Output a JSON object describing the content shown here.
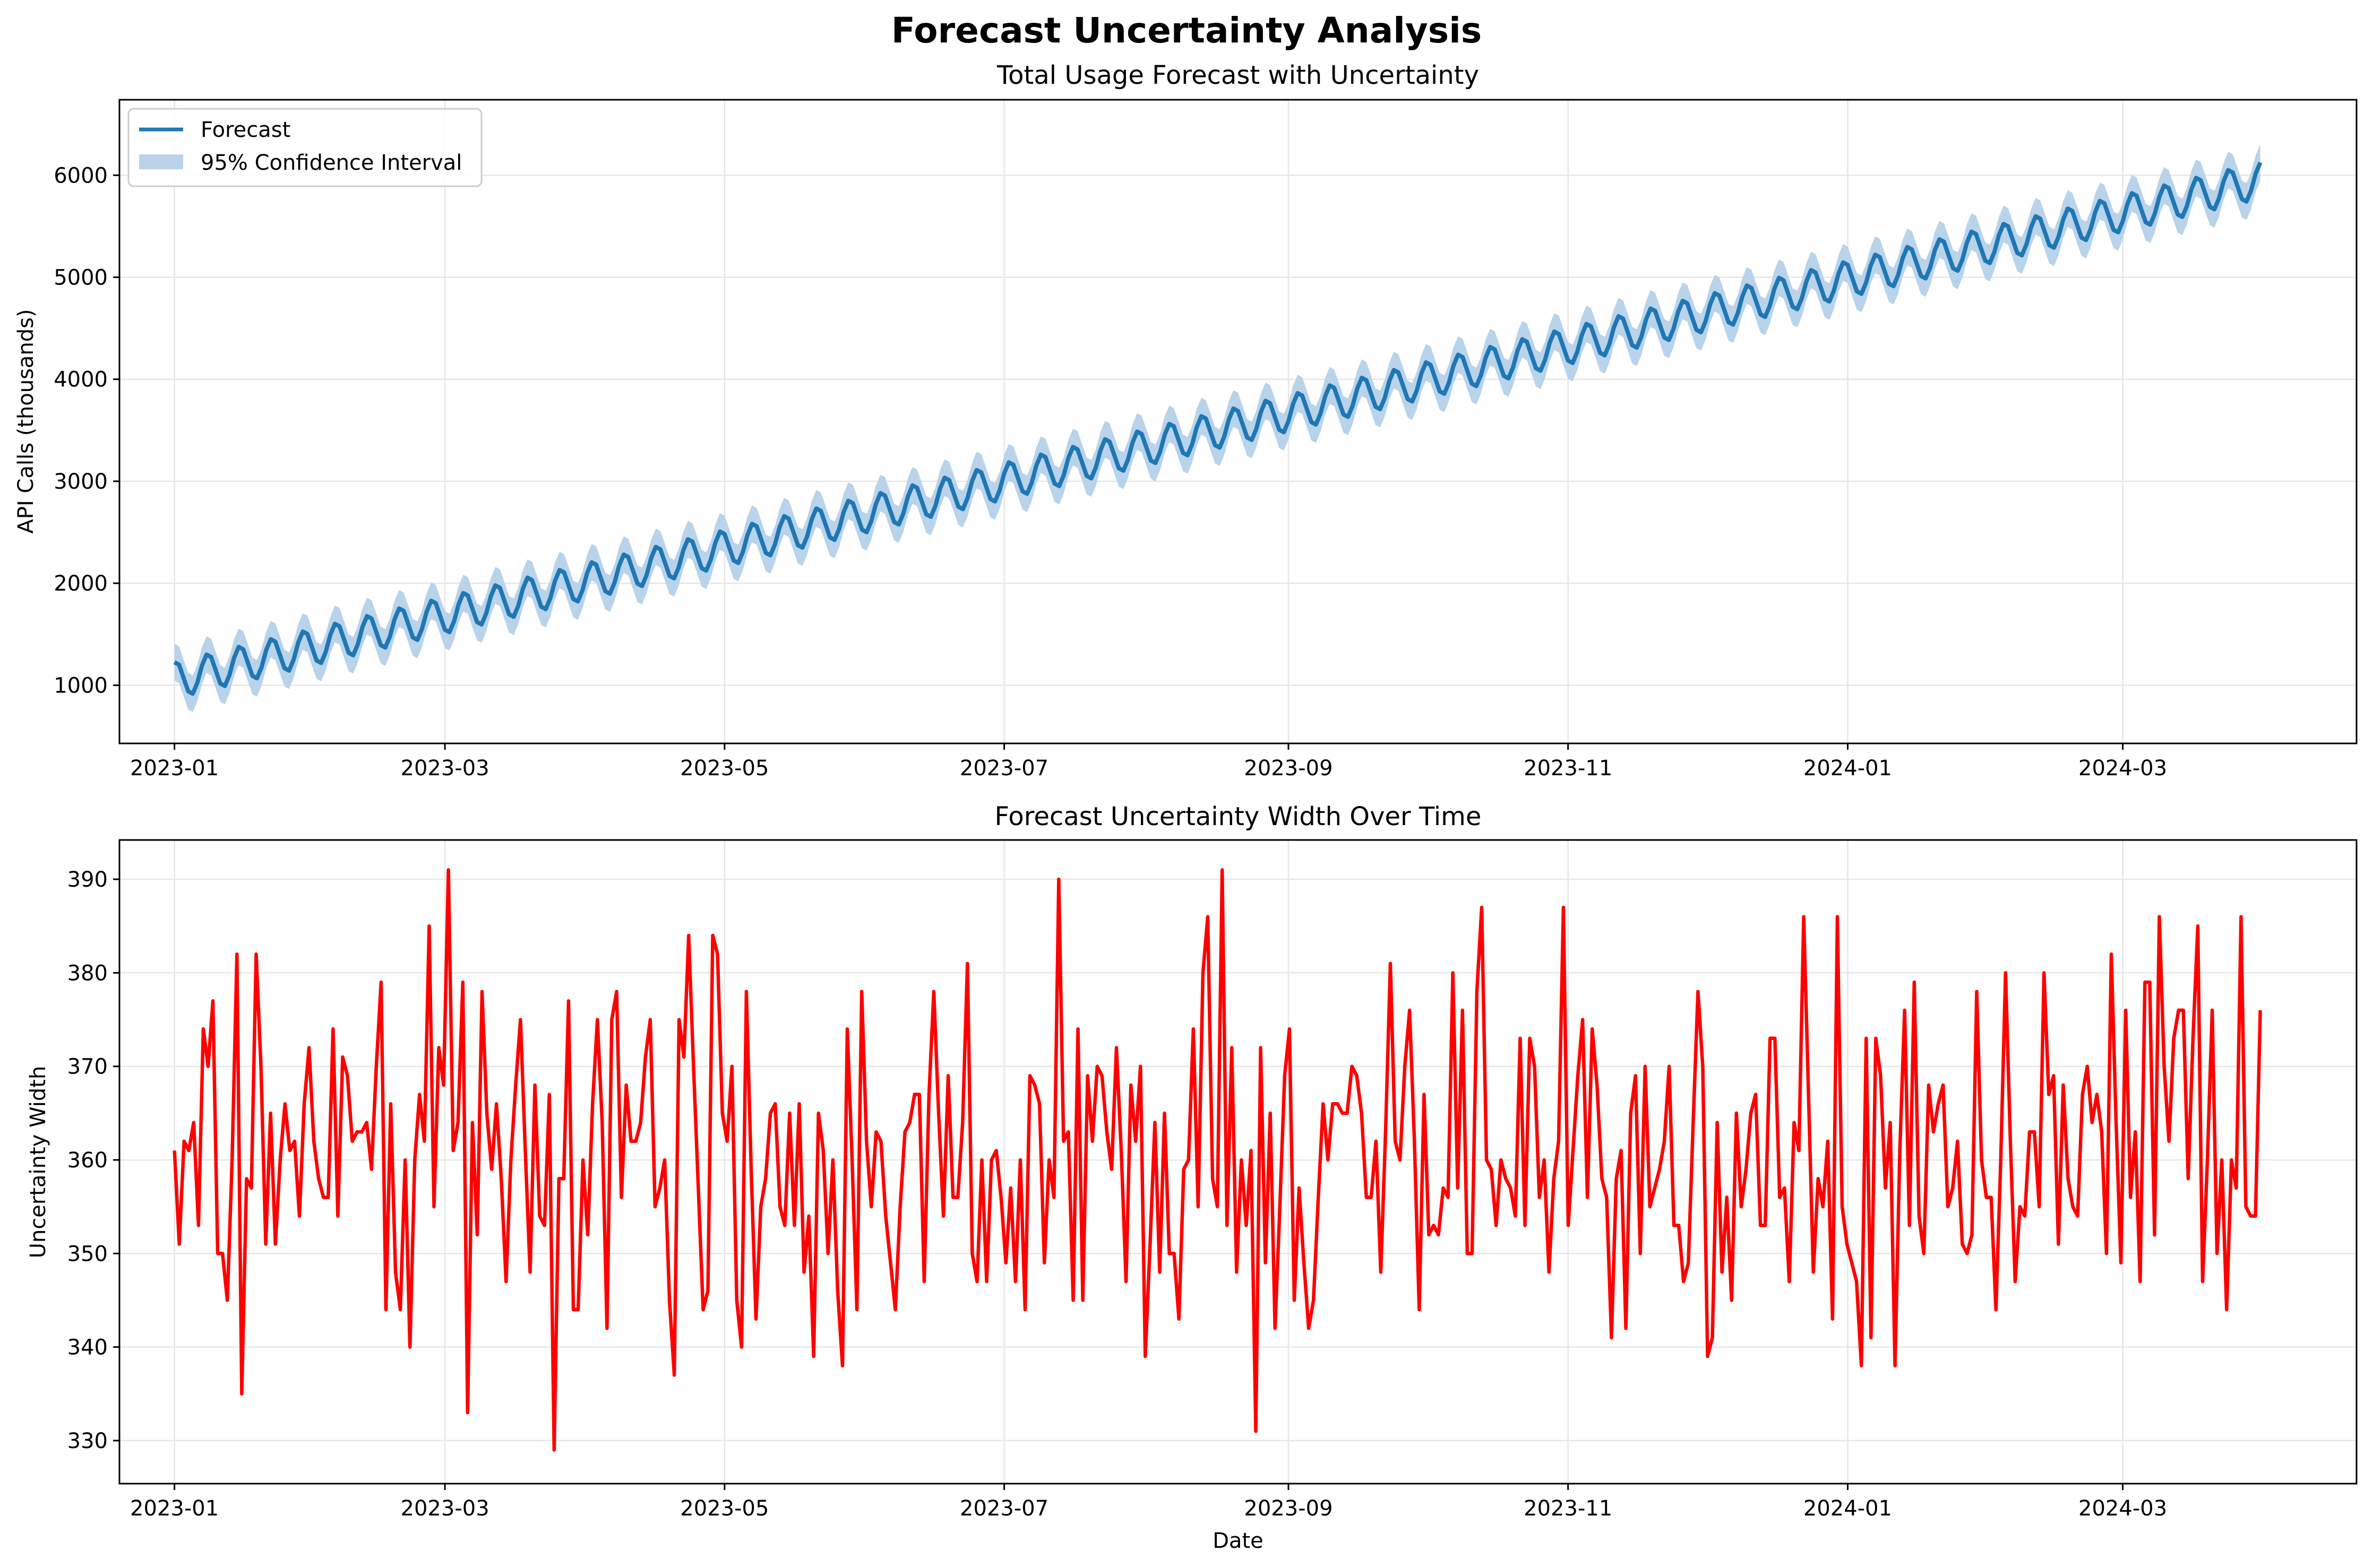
{
  "figure_title": "Forecast Uncertainty Analysis",
  "colors": {
    "forecast": "#1f77b4",
    "confidence_band": "#b8d3ea",
    "uncertainty_width": "#ff0000",
    "grid": "#e6e6e6"
  },
  "chart_data": [
    {
      "type": "line",
      "title": "Total Usage Forecast with Uncertainty",
      "xlabel": "",
      "ylabel": "API Calls (thousands)",
      "x_start": "2023-01-01",
      "x_end": "2024-03-31",
      "xlim": [
        "2022-12-20",
        "2024-04-21"
      ],
      "ylim": [
        430,
        6740
      ],
      "x_ticks": [
        "2023-01",
        "2023-03",
        "2023-05",
        "2023-07",
        "2023-09",
        "2023-11",
        "2024-01",
        "2024-03"
      ],
      "y_ticks": [
        1000,
        2000,
        3000,
        4000,
        5000,
        6000
      ],
      "grid": true,
      "legend_position": "upper left",
      "series": [
        {
          "name": "Forecast",
          "kind": "line",
          "model": "linear trend from about 1050 (2023-01-01) to about 5950 (2024-03-31) with a weekly oscillation of about ±180"
        },
        {
          "name": "95% Confidence Interval",
          "kind": "band",
          "half_width": 180
        }
      ]
    },
    {
      "type": "line",
      "title": "Forecast Uncertainty Width Over Time",
      "xlabel": "Date",
      "ylabel": "Uncertainty Width",
      "x_start": "2023-01-01",
      "x_end": "2024-03-31",
      "xlim": [
        "2022-12-20",
        "2024-04-21"
      ],
      "ylim": [
        325.4,
        394.2
      ],
      "x_ticks": [
        "2023-01",
        "2023-03",
        "2023-05",
        "2023-07",
        "2023-09",
        "2023-11",
        "2024-01",
        "2024-03"
      ],
      "y_ticks": [
        330,
        340,
        350,
        360,
        370,
        380,
        390
      ],
      "grid": true,
      "series": [
        {
          "name": "",
          "kind": "line",
          "color": "#ff0000",
          "values": [
            361,
            351,
            362,
            361,
            364,
            353,
            374,
            370,
            377,
            350,
            350,
            345,
            360,
            382,
            335,
            358,
            357,
            382,
            370,
            351,
            365,
            351,
            360,
            366,
            361,
            362,
            354,
            366,
            372,
            362,
            358,
            356,
            356,
            374,
            354,
            371,
            369,
            362,
            363,
            363,
            364,
            359,
            370,
            379,
            344,
            366,
            348,
            344,
            360,
            340,
            360,
            367,
            362,
            385,
            355,
            372,
            368,
            391,
            361,
            364,
            379,
            333,
            364,
            352,
            378,
            365,
            359,
            366,
            358,
            347,
            360,
            368,
            375,
            361,
            348,
            368,
            354,
            353,
            367,
            329,
            358,
            358,
            377,
            344,
            344,
            360,
            352,
            366,
            375,
            364,
            342,
            375,
            378,
            356,
            368,
            362,
            362,
            364,
            371,
            375,
            355,
            357,
            360,
            345,
            337,
            375,
            371,
            384,
            370,
            357,
            344,
            346,
            384,
            382,
            365,
            362,
            370,
            345,
            340,
            378,
            359,
            343,
            355,
            358,
            365,
            366,
            355,
            353,
            365,
            353,
            366,
            348,
            354,
            339,
            365,
            361,
            350,
            360,
            346,
            338,
            374,
            360,
            344,
            378,
            362,
            355,
            363,
            362,
            354,
            349,
            344,
            355,
            363,
            364,
            367,
            367,
            347,
            367,
            378,
            365,
            354,
            369,
            356,
            356,
            364,
            381,
            350,
            347,
            360,
            347,
            360,
            361,
            356,
            349,
            357,
            347,
            360,
            344,
            369,
            368,
            366,
            349,
            360,
            356,
            390,
            362,
            363,
            345,
            374,
            345,
            369,
            362,
            370,
            369,
            363,
            359,
            372,
            361,
            347,
            368,
            362,
            370,
            339,
            351,
            364,
            348,
            365,
            350,
            350,
            343,
            359,
            360,
            374,
            355,
            380,
            386,
            358,
            355,
            391,
            353,
            372,
            348,
            360,
            353,
            361,
            331,
            372,
            349,
            365,
            342,
            355,
            369,
            374,
            345,
            357,
            349,
            342,
            345,
            356,
            366,
            360,
            366,
            366,
            365,
            365,
            370,
            369,
            365,
            356,
            356,
            362,
            348,
            363,
            381,
            362,
            360,
            370,
            376,
            362,
            344,
            367,
            352,
            353,
            352,
            357,
            356,
            380,
            357,
            376,
            350,
            350,
            378,
            387,
            360,
            359,
            353,
            360,
            358,
            357,
            354,
            373,
            353,
            373,
            370,
            356,
            360,
            348,
            358,
            362,
            387,
            353,
            361,
            369,
            375,
            356,
            374,
            368,
            358,
            356,
            341,
            358,
            361,
            342,
            365,
            369,
            350,
            370,
            355,
            357,
            359,
            362,
            370,
            353,
            353,
            347,
            349,
            364,
            378,
            370,
            339,
            341,
            364,
            348,
            356,
            345,
            365,
            355,
            359,
            365,
            367,
            353,
            353,
            373,
            373,
            356,
            357,
            347,
            364,
            361,
            386,
            367,
            348,
            358,
            355,
            362,
            343,
            386,
            355,
            351,
            349,
            347,
            338,
            373,
            341,
            373,
            369,
            357,
            364,
            338,
            361,
            376,
            353,
            379,
            354,
            350,
            368,
            363,
            366,
            368,
            355,
            357,
            362,
            351,
            350,
            352,
            378,
            360,
            356,
            356,
            344,
            360,
            380,
            362,
            347,
            355,
            354,
            363,
            363,
            355,
            380,
            367,
            369,
            351,
            368,
            358,
            355,
            354,
            367,
            370,
            364,
            367,
            363,
            350,
            382,
            364,
            349,
            376,
            356,
            363,
            347,
            379,
            379,
            352,
            386,
            370,
            362,
            373,
            376,
            376,
            358,
            373,
            385,
            347,
            360,
            376,
            350,
            360,
            344,
            360,
            357,
            386,
            355,
            354,
            354,
            376
          ]
        }
      ]
    }
  ]
}
